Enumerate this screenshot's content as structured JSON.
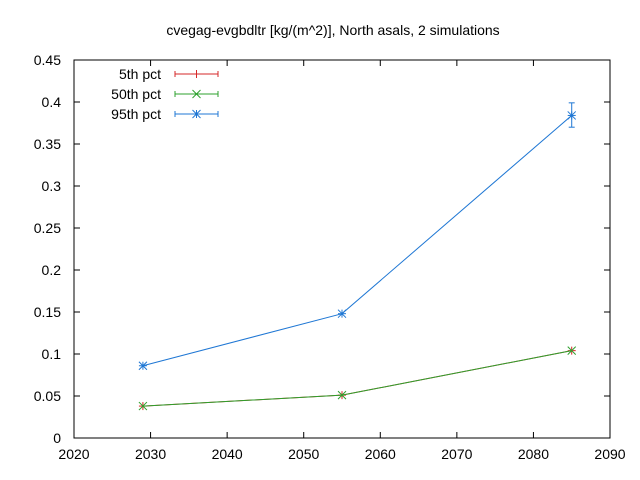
{
  "chart_data": {
    "type": "line",
    "title": "cvegag-evgbdltr [kg/(m^2)], North asals, 2 simulations",
    "xlim": [
      2020,
      2090
    ],
    "ylim": [
      0,
      0.45
    ],
    "xticks": [
      2020,
      2030,
      2040,
      2050,
      2060,
      2070,
      2080,
      2090
    ],
    "yticks": [
      0,
      0.05,
      0.1,
      0.15,
      0.2,
      0.25,
      0.3,
      0.35,
      0.4,
      0.45
    ],
    "xtick_labels": [
      "2020",
      "2030",
      "2040",
      "2050",
      "2060",
      "2070",
      "2080",
      "2090"
    ],
    "ytick_labels": [
      "0",
      "0.05",
      "0.1",
      "0.15",
      "0.2",
      "0.25",
      "0.3",
      "0.35",
      "0.4",
      "0.45"
    ],
    "legend_position": "top-left",
    "grid": false,
    "series": [
      {
        "name": "5th pct",
        "color": "#d62728",
        "marker": "plus",
        "x": [
          2029,
          2055,
          2085
        ],
        "y": [
          0.038,
          0.051,
          0.104
        ],
        "err_low": [
          0.038,
          0.051,
          0.104
        ],
        "err_high": [
          0.038,
          0.051,
          0.104
        ]
      },
      {
        "name": "50th pct",
        "color": "#2ca02c",
        "marker": "x",
        "x": [
          2029,
          2055,
          2085
        ],
        "y": [
          0.038,
          0.051,
          0.104
        ],
        "err_low": [
          0.038,
          0.051,
          0.104
        ],
        "err_high": [
          0.038,
          0.051,
          0.104
        ]
      },
      {
        "name": "95th pct",
        "color": "#1f77d4",
        "marker": "star",
        "x": [
          2029,
          2055,
          2085
        ],
        "y": [
          0.086,
          0.148,
          0.384
        ],
        "err_low": [
          0.086,
          0.148,
          0.37
        ],
        "err_high": [
          0.086,
          0.148,
          0.399
        ]
      }
    ]
  }
}
